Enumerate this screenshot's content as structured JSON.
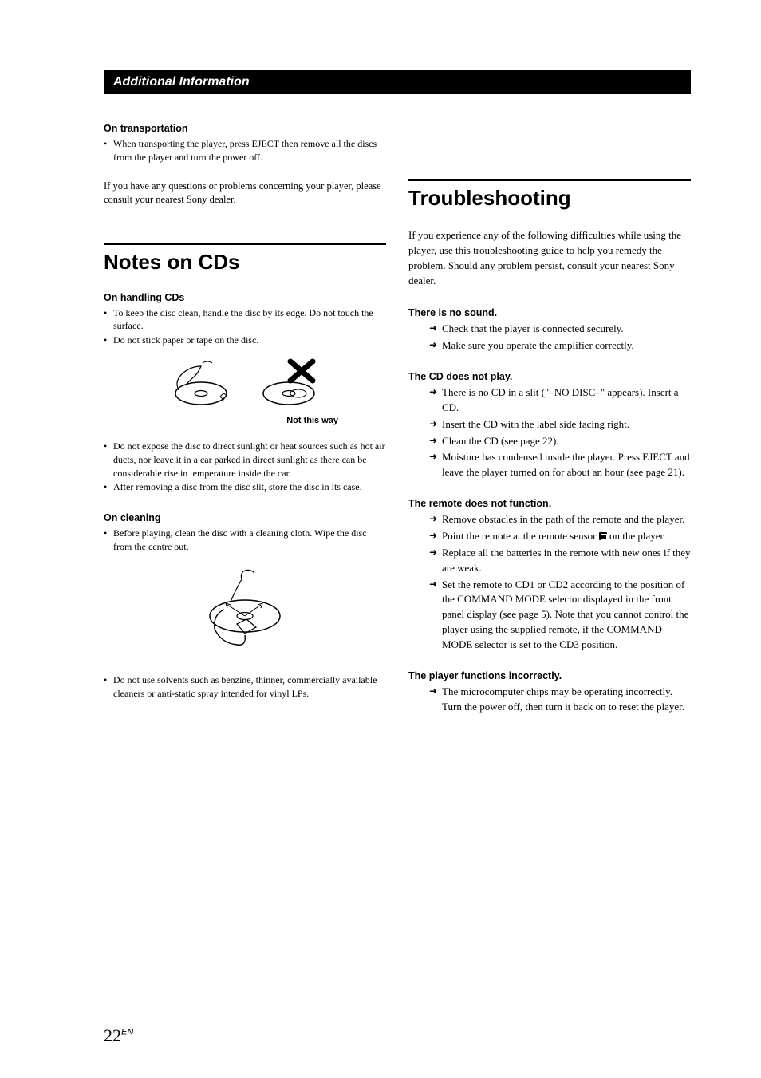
{
  "sectionBar": "Additional Information",
  "left": {
    "transport": {
      "heading": "On transportation",
      "bullets": [
        "When transporting the player, press EJECT then remove all the discs from the player and turn the power off."
      ]
    },
    "contact": "If you have any questions or problems concerning your player, please consult your nearest Sony dealer.",
    "notesTitle": "Notes on CDs",
    "handling": {
      "heading": "On handling CDs",
      "bullets1": [
        "To keep the disc clean, handle the disc by its edge. Do not touch the surface.",
        "Do not stick paper or tape on the disc."
      ],
      "caption": "Not this way",
      "bullets2": [
        "Do not expose the disc to direct sunlight or heat sources such as hot air ducts, nor leave it in a car parked in direct sunlight as there can be considerable rise in temperature inside the car.",
        "After removing a disc from the disc slit, store the disc in its case."
      ]
    },
    "cleaning": {
      "heading": "On cleaning",
      "bullets1": [
        "Before playing, clean the disc with a cleaning cloth. Wipe the disc from the centre out."
      ],
      "bullets2": [
        "Do not use solvents such as benzine, thinner, commercially available cleaners or anti-static spray intended for vinyl LPs."
      ]
    }
  },
  "right": {
    "title": "Troubleshooting",
    "intro": "If you experience any of the following difficulties while using the player, use this troubleshooting guide to help you remedy the problem. Should any problem persist, consult your nearest Sony dealer.",
    "blocks": [
      {
        "heading": "There is no sound.",
        "items": [
          "Check that the player is connected securely.",
          "Make sure you operate the amplifier correctly."
        ]
      },
      {
        "heading": "The CD does not play.",
        "items": [
          "There is no CD in a slit (\"–NO DISC–\" appears). Insert a CD.",
          "Insert the CD with the label side facing right.",
          "Clean the CD (see page 22).",
          "Moisture has condensed inside the player. Press EJECT and leave the player turned on for about an hour (see page 21)."
        ]
      },
      {
        "heading": "The remote does not function.",
        "items": [
          "Remove obstacles in the path of the remote and the player.",
          "Point the remote at the remote sensor __ICON__ on the player.",
          "Replace all the batteries in the remote with new ones if they are weak.",
          "Set the remote to CD1 or CD2 according to the position of the COMMAND MODE selector displayed in the front panel display (see page 5). Note that you cannot control the player using the supplied remote, if the COMMAND MODE selector is set to the CD3 position."
        ]
      },
      {
        "heading": "The player functions incorrectly.",
        "items": [
          "The microcomputer chips may be operating incorrectly. Turn the power off, then turn it back on to reset the player."
        ]
      }
    ]
  },
  "pageNumber": "22",
  "pageLang": "EN"
}
